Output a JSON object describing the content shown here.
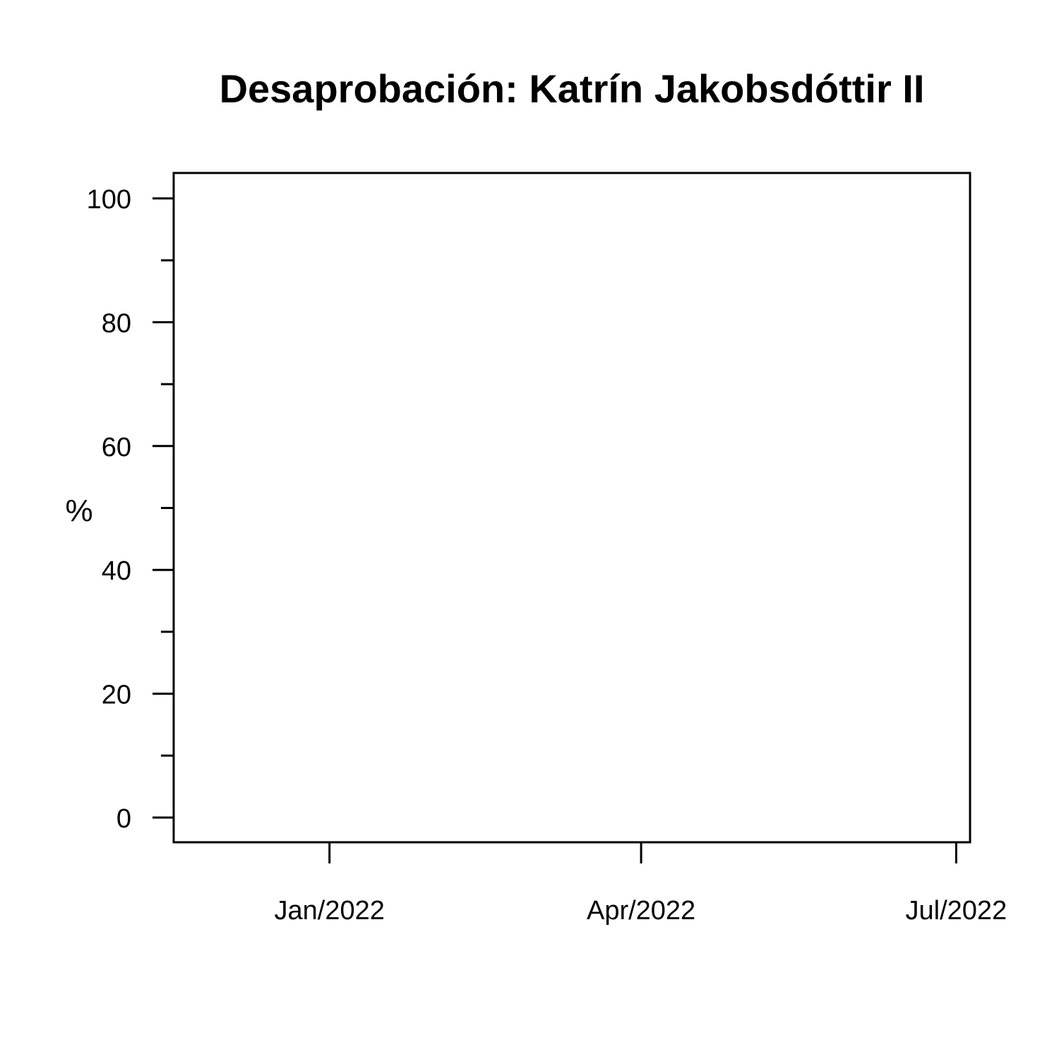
{
  "chart_data": {
    "type": "line",
    "title": "Desaprobación: Katrín Jakobsdóttir II",
    "xlabel": "",
    "ylabel": "%",
    "ylim": [
      0,
      100
    ],
    "y_major_ticks": [
      0,
      20,
      40,
      60,
      80,
      100
    ],
    "y_minor_ticks": [
      10,
      30,
      50,
      70,
      90
    ],
    "y_tick_labels": [
      "0",
      "20",
      "40",
      "60",
      "80",
      "100"
    ],
    "x_range": [
      "2021-11-17",
      "2022-07-05"
    ],
    "x_ticks": [
      {
        "date": "2022-01-01",
        "label": "Jan/2022"
      },
      {
        "date": "2022-04-01",
        "label": "Apr/2022"
      },
      {
        "date": "2022-07-01",
        "label": "Jul/2022"
      }
    ],
    "series": [],
    "grid": false,
    "legend": "none"
  }
}
